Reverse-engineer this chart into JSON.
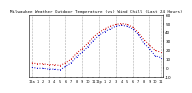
{
  "title": "Milwaukee Weather Outdoor Temperature (vs) Wind Chill (Last 24 Hours)",
  "title_fontsize": 3.0,
  "background_color": "#ffffff",
  "ylim": [
    -10,
    60
  ],
  "yticks": [
    -10,
    0,
    10,
    20,
    30,
    40,
    50,
    60
  ],
  "ytick_fontsize": 3.0,
  "xtick_fontsize": 2.5,
  "grid_color": "#aaaaaa",
  "temp_color": "#cc0000",
  "chill_color": "#0000cc",
  "hours": [
    0,
    1,
    2,
    3,
    4,
    5,
    6,
    7,
    8,
    9,
    10,
    11,
    12,
    13,
    14,
    15,
    16,
    17,
    18,
    19,
    20,
    21,
    22,
    23
  ],
  "temp": [
    6,
    5,
    5,
    4,
    4,
    3,
    6,
    10,
    17,
    22,
    28,
    35,
    40,
    44,
    47,
    49,
    50,
    49,
    46,
    40,
    32,
    26,
    20,
    18
  ],
  "chill": [
    1,
    0,
    0,
    -1,
    -1,
    -2,
    2,
    6,
    13,
    18,
    24,
    31,
    37,
    41,
    44,
    47,
    48,
    47,
    44,
    38,
    28,
    22,
    14,
    12
  ],
  "xtick_labels": [
    "12a",
    "1",
    "2",
    "3",
    "4",
    "5",
    "6",
    "7",
    "8",
    "9",
    "10",
    "11",
    "12p",
    "1",
    "2",
    "3",
    "4",
    "5",
    "6",
    "7",
    "8",
    "9",
    "10",
    "11"
  ],
  "grid_positions": [
    0,
    3,
    6,
    9,
    12,
    15,
    18,
    21,
    23
  ]
}
